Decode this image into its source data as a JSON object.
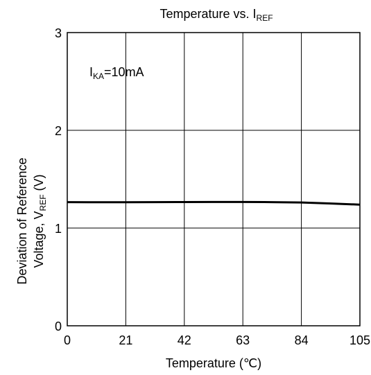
{
  "chart_data": {
    "type": "line",
    "title": {
      "main": "Temperature vs. I",
      "sub": "REF"
    },
    "xlabel": "Temperature (℃)",
    "ylabel": {
      "line1": "Deviation of Reference",
      "line2_main": "Voltage, V",
      "line2_sub": "REF",
      "line2_tail": " (V)"
    },
    "annotation": {
      "main": "I",
      "sub": "KA",
      "tail": "=10mA"
    },
    "xlim": [
      0,
      105
    ],
    "ylim": [
      0,
      3
    ],
    "xticks": [
      0,
      21,
      42,
      63,
      84,
      105
    ],
    "yticks": [
      0,
      1,
      2,
      3
    ],
    "grid": true,
    "series": [
      {
        "x": [
          0,
          10,
          21,
          31,
          42,
          52,
          63,
          73,
          84,
          94,
          105
        ],
        "y": [
          1.265,
          1.264,
          1.264,
          1.265,
          1.266,
          1.267,
          1.267,
          1.265,
          1.262,
          1.252,
          1.24
        ]
      }
    ]
  }
}
